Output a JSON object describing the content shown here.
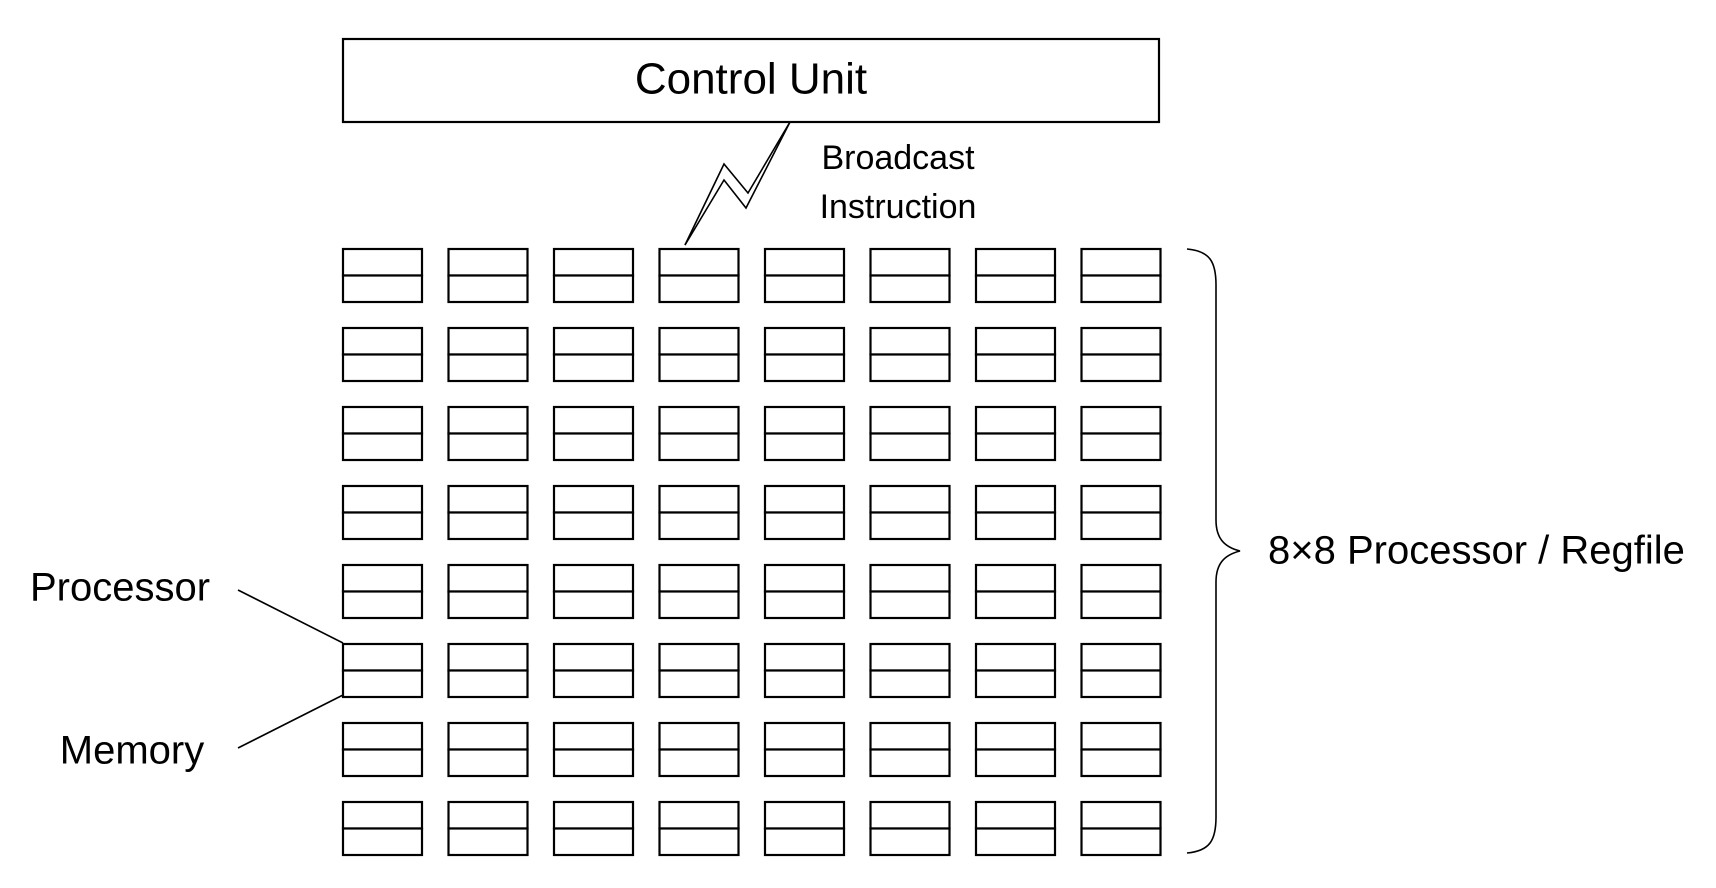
{
  "control_unit": {
    "label": "Control Unit"
  },
  "broadcast": {
    "line1": "Broadcast",
    "line2": "Instruction"
  },
  "grid": {
    "rows": 8,
    "cols": 8
  },
  "labels": {
    "processor": "Processor",
    "memory": "Memory",
    "array": "8×8 Processor / Regfile"
  }
}
